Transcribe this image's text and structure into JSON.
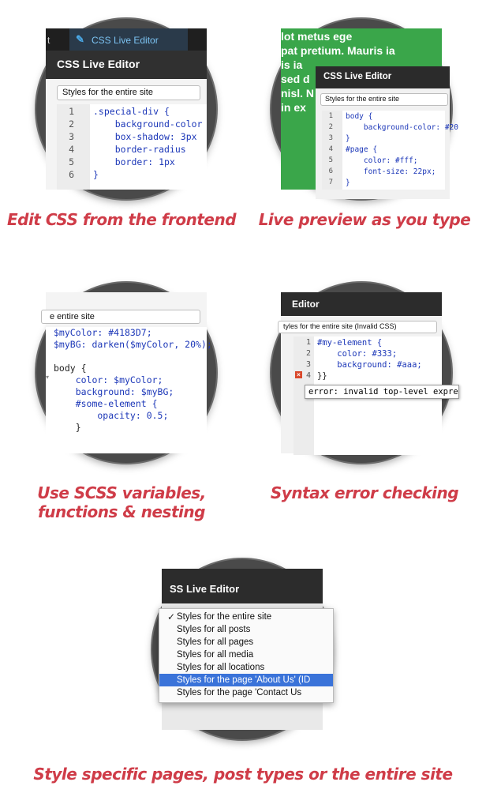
{
  "features": [
    {
      "caption": "Edit CSS from the frontend",
      "tab_label": "CSS Live Editor",
      "tab_partial": "t",
      "header": "CSS Live Editor",
      "select_value": "Styles for the entire site",
      "code_lines": [
        {
          "num": "1",
          "text": ".special-div {"
        },
        {
          "num": "2",
          "text": "    background-color"
        },
        {
          "num": "3",
          "text": "    box-shadow: 3px"
        },
        {
          "num": "4",
          "text": "    border-radius"
        },
        {
          "num": "5",
          "text": "    border: 1px"
        },
        {
          "num": "6",
          "text": "}"
        }
      ]
    },
    {
      "caption": "Live preview as you type",
      "bg_text": [
        "lot metus ege",
        "pat pretium. Mauris ia",
        "is ia",
        "sed d",
        "nisl. N",
        "in ex"
      ],
      "header": "CSS Live Editor",
      "select_value": "Styles for the entire site",
      "code_lines": [
        {
          "num": "1",
          "text": "body {"
        },
        {
          "num": "2",
          "text": "    background-color: #20"
        },
        {
          "num": "3",
          "text": "}"
        },
        {
          "num": "4",
          "text": "#page {"
        },
        {
          "num": "5",
          "text": "    color: #fff;"
        },
        {
          "num": "6",
          "text": "    font-size: 22px;"
        },
        {
          "num": "7",
          "text": "}"
        }
      ]
    },
    {
      "caption_line1": "Use SCSS variables,",
      "caption_line2": "functions & nesting",
      "select_value": "e entire site",
      "code_lines": [
        "$myColor: #4183D7;",
        "$myBG: darken($myColor, 20%);",
        "",
        "body {",
        "    color: $myColor;",
        "    background: $myBG;",
        "    #some-element {",
        "        opacity: 0.5;",
        "    }"
      ]
    },
    {
      "caption": "Syntax error checking",
      "header": "Editor",
      "select_value": "tyles for the entire site (Invalid CSS)",
      "code_lines": [
        {
          "num": "1",
          "text": "#my-element {"
        },
        {
          "num": "2",
          "text": "    color: #333;"
        },
        {
          "num": "3",
          "text": "    background: #aaa;"
        },
        {
          "num": "4",
          "text": "}}"
        }
      ],
      "error_text": "error: invalid top-level expre"
    },
    {
      "caption": "Style specific pages, post types or the entire site",
      "header": "SS Live Editor",
      "checkmark": "✓",
      "menu_items": [
        "Styles for the entire site",
        "Styles for all posts",
        "Styles for all pages",
        "Styles for all media",
        "Styles for all locations",
        "Styles for the page 'About Us' (ID",
        "Styles for the page 'Contact Us"
      ],
      "selected_index": 5
    }
  ],
  "colors": {
    "caption_red": "#cf3c48",
    "ring": "#4a4a4a",
    "green_bg": "#3aa64a",
    "menu_highlight": "#3a73d9",
    "code_blue": "#1c37b8"
  }
}
